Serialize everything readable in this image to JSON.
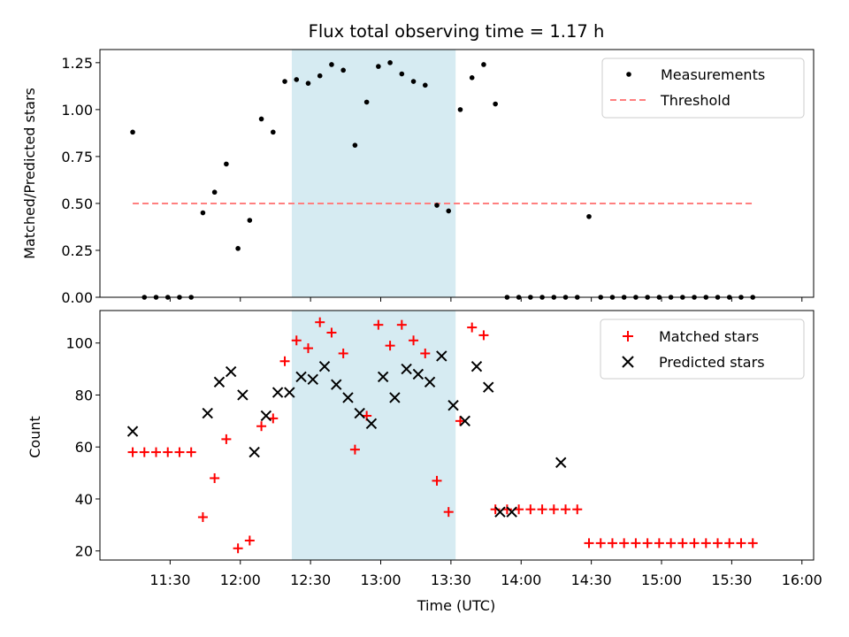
{
  "title": "Flux total observing time = 1.17 h",
  "colors": {
    "measurement": "#000000",
    "threshold": "#ff7f7f",
    "matched": "#ff0000",
    "predicted": "#000000",
    "span": "#add8e6"
  },
  "chart_data": [
    {
      "type": "scatter",
      "panel": "top",
      "ylabel": "Matched/Predicted stars",
      "xlabel": "",
      "xlim_minutes": [
        660,
        965
      ],
      "ylim": [
        0,
        1.32
      ],
      "yticks": [
        0,
        0.25,
        0.5,
        0.75,
        1.0,
        1.25
      ],
      "ytick_labels": [
        "0.00",
        "0.25",
        "0.50",
        "0.75",
        "1.00",
        "1.25"
      ],
      "grid": false,
      "legend": [
        "Measurements",
        "Threshold"
      ],
      "legend_position": "top-right",
      "highlight_span_minutes": [
        742,
        812
      ],
      "threshold": {
        "value": 0.5,
        "x_minutes": [
          674,
          940
        ]
      },
      "series": [
        {
          "name": "Measurements",
          "x_minutes": [
            674,
            679,
            684,
            689,
            694,
            699,
            704,
            709,
            714,
            719,
            724,
            729,
            734,
            739,
            744,
            749,
            754,
            759,
            764,
            769,
            774,
            779,
            784,
            789,
            794,
            799,
            804,
            809,
            814,
            819,
            824,
            829,
            834,
            839,
            844,
            849,
            854,
            859,
            864,
            869,
            874,
            879,
            884,
            889,
            894,
            899,
            904,
            909,
            914,
            919,
            924,
            929,
            934,
            939
          ],
          "values": [
            0.88,
            0,
            0,
            0,
            0,
            0,
            0.45,
            0.56,
            0.71,
            0.26,
            0.41,
            0.95,
            0.88,
            1.15,
            1.16,
            1.14,
            1.18,
            1.24,
            1.21,
            0.81,
            1.04,
            1.23,
            1.25,
            1.19,
            1.15,
            1.13,
            0.49,
            0.46,
            1.0,
            1.17,
            1.24,
            1.03,
            0,
            0,
            0,
            0,
            0,
            0,
            0,
            0.43,
            0,
            0,
            0,
            0,
            0,
            0,
            0,
            0,
            0,
            0,
            0,
            0,
            0,
            0
          ]
        }
      ]
    },
    {
      "type": "scatter",
      "panel": "bottom",
      "ylabel": "Count",
      "xlabel": "Time (UTC)",
      "xlim_minutes": [
        660,
        965
      ],
      "ylim": [
        16.5,
        112.5
      ],
      "yticks": [
        20,
        40,
        60,
        80,
        100
      ],
      "ytick_labels": [
        "20",
        "40",
        "60",
        "80",
        "100"
      ],
      "xticks_minutes": [
        690,
        720,
        750,
        780,
        810,
        840,
        870,
        900,
        930,
        960
      ],
      "xtick_labels": [
        "11:30",
        "12:00",
        "12:30",
        "13:00",
        "13:30",
        "14:00",
        "14:30",
        "15:00",
        "15:30",
        "16:00"
      ],
      "grid": false,
      "legend": [
        "Matched stars",
        "Predicted stars"
      ],
      "legend_position": "top-right",
      "highlight_span_minutes": [
        742,
        812
      ],
      "series": [
        {
          "name": "Matched stars",
          "x_minutes": [
            674,
            679,
            684,
            689,
            694,
            699,
            704,
            709,
            714,
            719,
            724,
            729,
            734,
            739,
            744,
            749,
            754,
            759,
            764,
            769,
            774,
            779,
            784,
            789,
            794,
            799,
            804,
            809,
            814,
            819,
            824,
            829,
            834,
            839,
            844,
            849,
            854,
            859,
            864,
            869,
            874,
            879,
            884,
            889,
            894,
            899,
            904,
            909,
            914,
            919,
            924,
            929,
            934,
            939
          ],
          "values": [
            58,
            58,
            58,
            58,
            58,
            58,
            33,
            48,
            63,
            21,
            24,
            68,
            71,
            93,
            101,
            98,
            108,
            104,
            96,
            59,
            72,
            107,
            99,
            107,
            101,
            96,
            47,
            35,
            70,
            106,
            103,
            36,
            36,
            36,
            36,
            36,
            36,
            36,
            36,
            23,
            23,
            23,
            23,
            23,
            23,
            23,
            23,
            23,
            23,
            23,
            23,
            23,
            23,
            23
          ]
        },
        {
          "name": "Predicted stars",
          "x_minutes": [
            674,
            706,
            711,
            716,
            721,
            726,
            731,
            736,
            741,
            746,
            751,
            756,
            761,
            766,
            771,
            776,
            781,
            786,
            791,
            796,
            801,
            806,
            811,
            816,
            821,
            826,
            831,
            836,
            857
          ],
          "values": [
            66,
            73,
            85,
            89,
            80,
            58,
            72,
            81,
            81,
            87,
            86,
            91,
            84,
            79,
            73,
            69,
            87,
            79,
            90,
            88,
            85,
            95,
            76,
            70,
            91,
            83,
            35,
            35,
            54
          ]
        }
      ]
    }
  ]
}
